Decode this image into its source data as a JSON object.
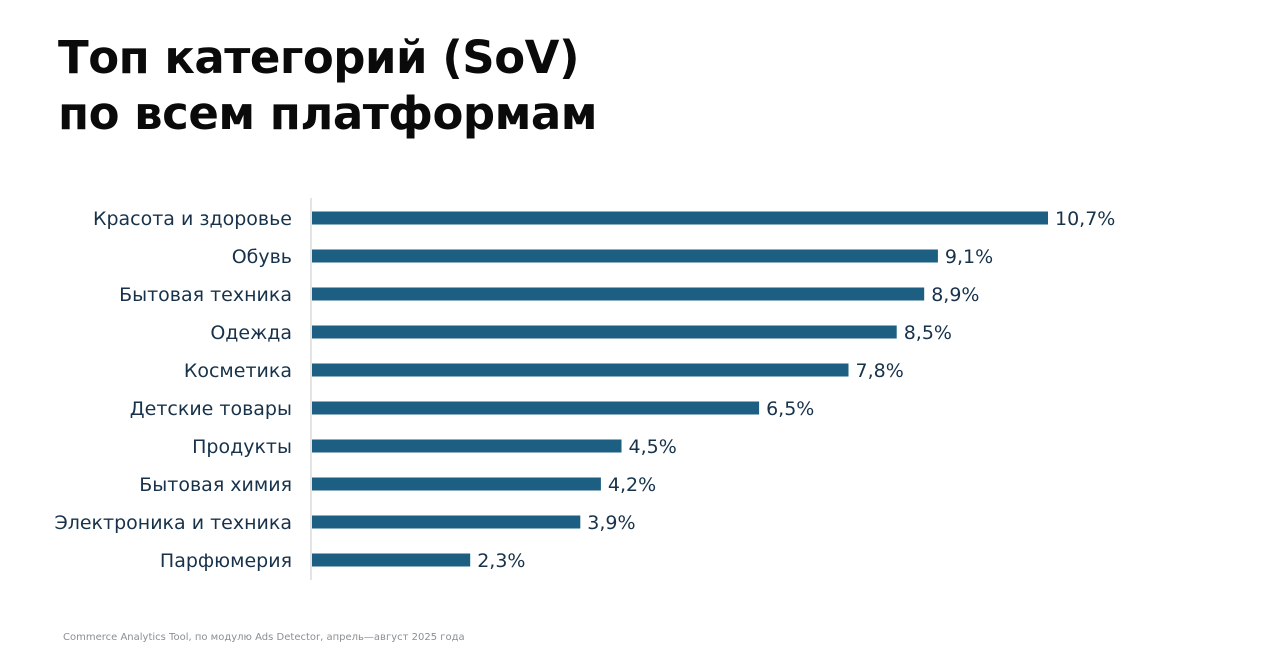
{
  "title_lines": [
    "Топ категорий (SoV)",
    "по всем платформам"
  ],
  "source_note": "Commerce Analytics Tool, по модулю Ads Detector, апрель—август 2025 года",
  "colors": {
    "bar": "#1d5f82",
    "label": "#17324a",
    "axis": "#c8c8c8"
  },
  "chart_data": {
    "type": "bar",
    "orientation": "horizontal",
    "title": "Топ категорий (SoV) по всем платформам",
    "xlabel": "",
    "ylabel": "",
    "unit": "%",
    "xlim": [
      0,
      10.7
    ],
    "grid": false,
    "categories": [
      "Красота и здоровье",
      "Обувь",
      "Бытовая техника",
      "Одежда",
      "Косметика",
      "Детские товары",
      "Продукты",
      "Бытовая химия",
      "Электроника и техника",
      "Парфюмерия"
    ],
    "values": [
      10.7,
      9.1,
      8.9,
      8.5,
      7.8,
      6.5,
      4.5,
      4.2,
      3.9,
      2.3
    ],
    "value_labels": [
      "10,7%",
      "9,1%",
      "8,9%",
      "8,5%",
      "7,8%",
      "6,5%",
      "4,5%",
      "4,2%",
      "3,9%",
      "2,3%"
    ]
  }
}
